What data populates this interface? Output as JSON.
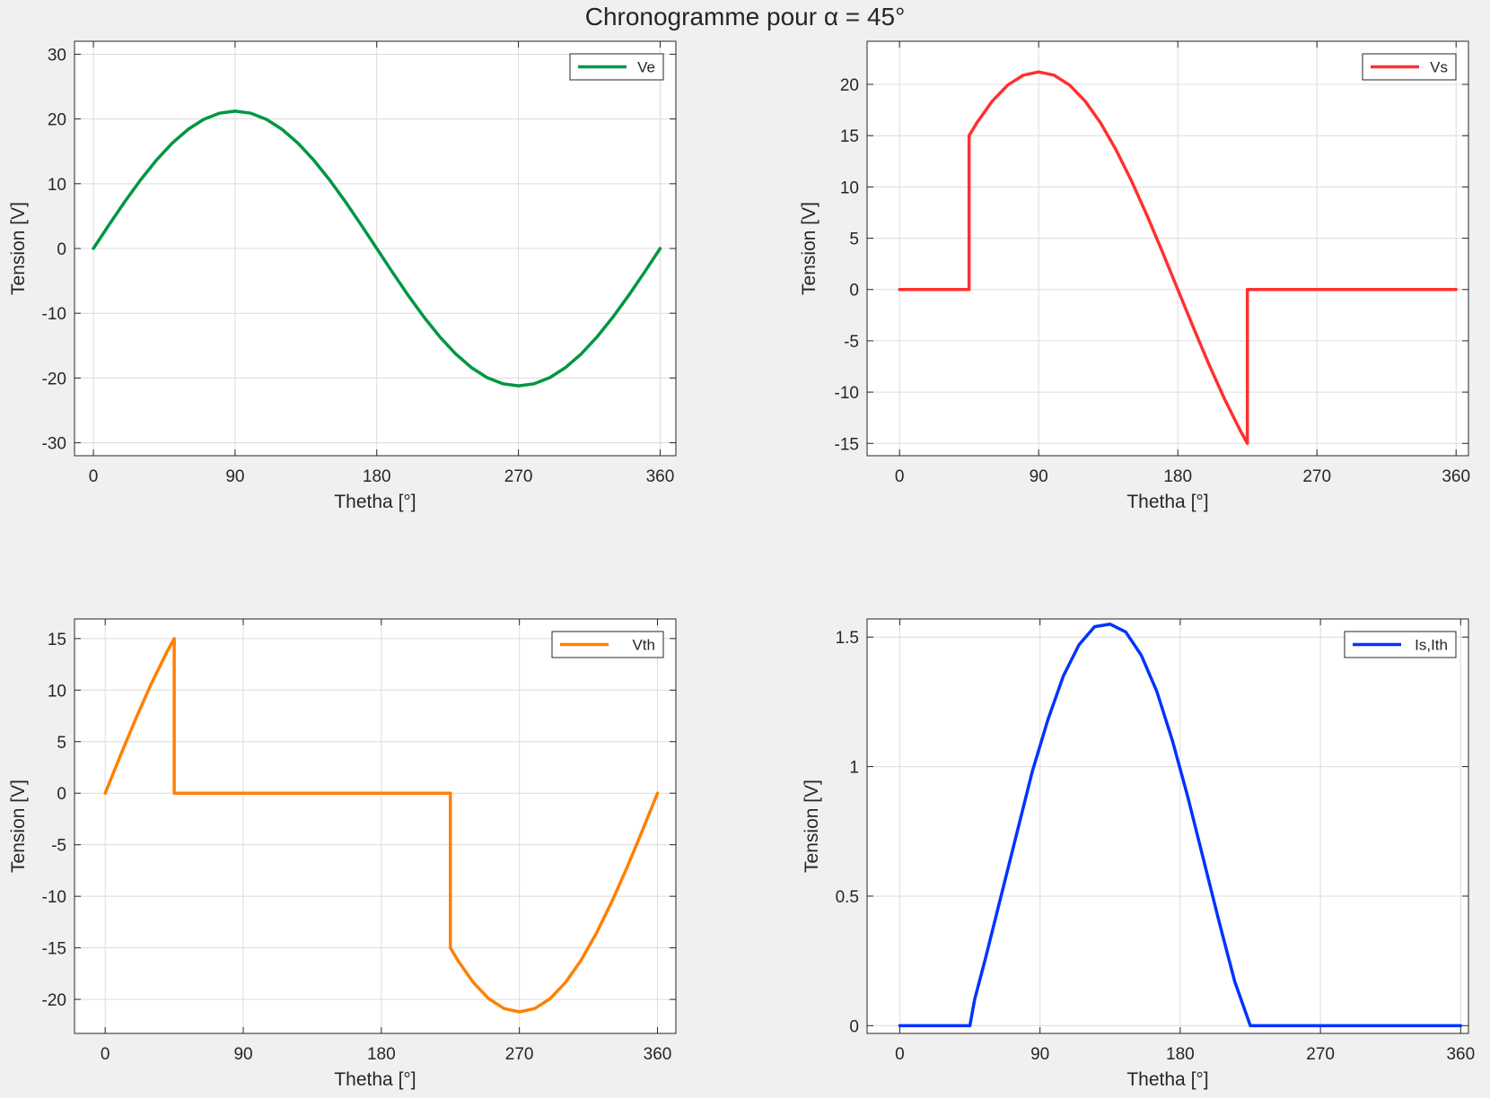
{
  "figure": {
    "title": "Chronogramme pour α = 45°"
  },
  "chart_data": [
    {
      "type": "line",
      "name": "top-left",
      "xlabel": "Thetha [°]",
      "ylabel": "Tension [V]",
      "xlim": [
        -12,
        370
      ],
      "ylim": [
        -32,
        32
      ],
      "xticks": [
        0,
        90,
        180,
        270,
        360
      ],
      "yticks": [
        -30,
        -20,
        -10,
        0,
        10,
        20,
        30
      ],
      "grid": true,
      "legend": "top-right",
      "series": [
        {
          "name": "Ve",
          "color": "#009644",
          "x": [
            0,
            10,
            20,
            30,
            40,
            50,
            60,
            70,
            80,
            90,
            100,
            110,
            120,
            130,
            140,
            150,
            160,
            170,
            180,
            190,
            200,
            210,
            220,
            230,
            240,
            250,
            260,
            270,
            280,
            290,
            300,
            310,
            320,
            330,
            340,
            350,
            360
          ],
          "y": [
            0,
            3.68,
            7.25,
            10.6,
            13.63,
            16.25,
            18.37,
            19.93,
            20.89,
            21.21,
            20.89,
            19.93,
            18.37,
            16.25,
            13.63,
            10.6,
            7.25,
            3.68,
            0,
            -3.68,
            -7.25,
            -10.6,
            -13.63,
            -16.25,
            -18.37,
            -19.93,
            -20.89,
            -21.21,
            -20.89,
            -19.93,
            -18.37,
            -16.25,
            -13.63,
            -10.6,
            -7.25,
            -3.68,
            0
          ]
        }
      ]
    },
    {
      "type": "line",
      "name": "top-right",
      "xlabel": "Thetha [°]",
      "ylabel": "Tension [V]",
      "xlim": [
        -21,
        368
      ],
      "ylim": [
        -16.2,
        24.2
      ],
      "xticks": [
        0,
        90,
        180,
        270,
        360
      ],
      "yticks": [
        -15,
        -10,
        -5,
        0,
        5,
        10,
        15,
        20
      ],
      "grid": true,
      "legend": "top-right",
      "series": [
        {
          "name": "Vs",
          "color": "#ff3030",
          "x": [
            0,
            45,
            45,
            50,
            60,
            70,
            80,
            90,
            100,
            110,
            120,
            130,
            140,
            150,
            160,
            170,
            180,
            190,
            200,
            210,
            220,
            225,
            225,
            360
          ],
          "y": [
            0,
            0,
            15,
            16.25,
            18.37,
            19.93,
            20.89,
            21.21,
            20.89,
            19.93,
            18.37,
            16.25,
            13.63,
            10.6,
            7.25,
            3.68,
            0,
            -3.68,
            -7.25,
            -10.6,
            -13.63,
            -15,
            0,
            0
          ]
        }
      ]
    },
    {
      "type": "line",
      "name": "bottom-left",
      "xlabel": "Thetha [°]",
      "ylabel": "Tension [V]",
      "xlim": [
        -20,
        372
      ],
      "ylim": [
        -23.3,
        16.9
      ],
      "xticks": [
        0,
        90,
        180,
        270,
        360
      ],
      "yticks": [
        -20,
        -15,
        -10,
        -5,
        0,
        5,
        10,
        15
      ],
      "grid": true,
      "legend": "top-right",
      "series": [
        {
          "name": "Vth",
          "color": "#ff8000",
          "x": [
            0,
            10,
            20,
            30,
            40,
            45,
            45,
            225,
            225,
            230,
            240,
            250,
            260,
            270,
            280,
            290,
            300,
            310,
            320,
            330,
            340,
            350,
            360
          ],
          "y": [
            0,
            3.68,
            7.25,
            10.6,
            13.63,
            15,
            0,
            0,
            -15,
            -16.25,
            -18.37,
            -19.93,
            -20.89,
            -21.21,
            -20.89,
            -19.93,
            -18.37,
            -16.25,
            -13.63,
            -10.6,
            -7.25,
            -3.68,
            0
          ]
        }
      ]
    },
    {
      "type": "line",
      "name": "bottom-right",
      "xlabel": "Thetha [°]",
      "ylabel": "Tension [V]",
      "xlim": [
        -21,
        365
      ],
      "ylim": [
        -0.03,
        1.57
      ],
      "xticks": [
        0,
        90,
        180,
        270,
        360
      ],
      "yticks": [
        0,
        0.5,
        1,
        1.5
      ],
      "grid": true,
      "legend": "top-right",
      "series": [
        {
          "name": "Is,Ith",
          "color": "#0033ff",
          "x": [
            0,
            45,
            48,
            55,
            65,
            75,
            85,
            95,
            105,
            115,
            125,
            135,
            145,
            155,
            165,
            175,
            185,
            195,
            205,
            215,
            225,
            360
          ],
          "y": [
            0,
            0,
            0.1,
            0.26,
            0.5,
            0.74,
            0.98,
            1.18,
            1.35,
            1.47,
            1.54,
            1.55,
            1.52,
            1.43,
            1.29,
            1.1,
            0.88,
            0.64,
            0.4,
            0.17,
            0,
            0
          ]
        }
      ]
    }
  ]
}
